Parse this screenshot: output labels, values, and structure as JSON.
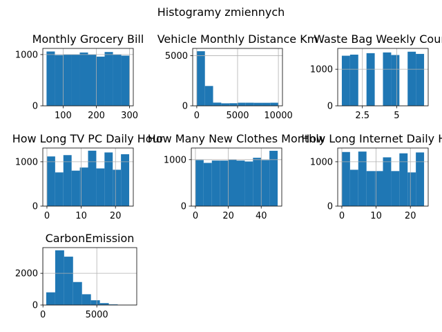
{
  "suptitle": "Histogramy zmiennych",
  "bar_color": "#1f77b4",
  "grid_color": "#b0b0b0",
  "chart_data": [
    {
      "type": "bar",
      "title": "Monthly Grocery Bill",
      "xlim": [
        38.75,
        311.25
      ],
      "ylim": [
        0,
        1120
      ],
      "grid": true,
      "bin_edges": [
        50,
        75,
        100,
        125,
        150,
        175,
        200,
        225,
        250,
        275,
        300
      ],
      "values": [
        1060,
        990,
        1000,
        1000,
        1040,
        1000,
        960,
        1050,
        1000,
        980
      ],
      "xticks": [
        100,
        200,
        300
      ],
      "yticks": [
        0,
        1000
      ]
    },
    {
      "type": "bar",
      "title": "Vehicle Monthly Distance Km",
      "xlim": [
        -500,
        10500
      ],
      "ylim": [
        0,
        5730
      ],
      "grid": true,
      "bin_edges": [
        0,
        1000,
        2000,
        3000,
        4000,
        5000,
        6000,
        7000,
        8000,
        9000,
        10000
      ],
      "values": [
        5450,
        1980,
        320,
        250,
        260,
        310,
        310,
        300,
        300,
        310
      ],
      "xticks": [
        0,
        5000,
        10000
      ],
      "yticks": [
        0,
        5000
      ]
    },
    {
      "type": "bar",
      "title": "Waste Bag Weekly Count",
      "xlim": [
        0.7,
        7.3
      ],
      "ylim": [
        0,
        1570
      ],
      "grid": true,
      "bin_edges": [
        1,
        1.6,
        2.2,
        2.8,
        3.4,
        4,
        4.6,
        5.2,
        5.8,
        6.4,
        7
      ],
      "values": [
        1370,
        1400,
        0,
        1440,
        0,
        1460,
        1390,
        0,
        1480,
        1420
      ],
      "xticks": [
        2.5,
        5.0
      ],
      "yticks": [
        0,
        1000
      ]
    },
    {
      "type": "bar",
      "title": "How Long TV PC Daily Hour",
      "xlim": [
        -1.2,
        25.2
      ],
      "ylim": [
        0,
        1310
      ],
      "grid": true,
      "bin_edges": [
        0,
        2.4,
        4.8,
        7.2,
        9.6,
        12,
        14.4,
        16.8,
        19.2,
        21.6,
        24
      ],
      "values": [
        1120,
        760,
        1150,
        800,
        870,
        1250,
        850,
        1210,
        820,
        1170
      ],
      "xticks": [
        0,
        10,
        20
      ],
      "yticks": [
        0,
        1000
      ]
    },
    {
      "type": "bar",
      "title": "How Many New Clothes Monthly",
      "xlim": [
        -2.5,
        52.5
      ],
      "ylim": [
        0,
        1250
      ],
      "grid": true,
      "bin_edges": [
        0,
        5,
        10,
        15,
        20,
        25,
        30,
        35,
        40,
        45,
        50
      ],
      "values": [
        990,
        930,
        980,
        980,
        1000,
        980,
        960,
        1040,
        990,
        1190
      ],
      "xticks": [
        0,
        20,
        40
      ],
      "yticks": [
        0,
        1000
      ]
    },
    {
      "type": "bar",
      "title": "How Long Internet Daily Hour",
      "xlim": [
        -1.2,
        25.2
      ],
      "ylim": [
        0,
        1310
      ],
      "grid": true,
      "bin_edges": [
        0,
        2.4,
        4.8,
        7.2,
        9.6,
        12,
        14.4,
        16.8,
        19.2,
        21.6,
        24
      ],
      "values": [
        1220,
        820,
        1230,
        790,
        790,
        1100,
        790,
        1190,
        760,
        1210
      ],
      "xticks": [
        0,
        10,
        20
      ],
      "yticks": [
        0,
        1000
      ]
    },
    {
      "type": "bar",
      "title": "CarbonEmission",
      "xlim": [
        -13,
        8710
      ],
      "ylim": [
        0,
        3620
      ],
      "grid": true,
      "bin_edges": [
        306,
        1136,
        1966,
        2796,
        3626,
        4456,
        5286,
        6116,
        6946,
        7776,
        8606
      ],
      "values": [
        800,
        3450,
        3050,
        1450,
        680,
        300,
        120,
        40,
        15,
        8
      ],
      "xticks": [
        0,
        5000
      ],
      "yticks": [
        0,
        2000
      ]
    }
  ]
}
